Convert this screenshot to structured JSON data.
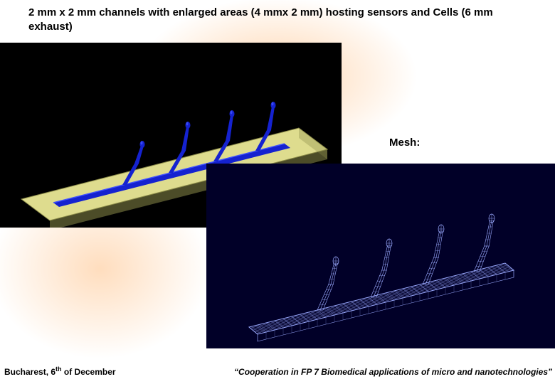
{
  "title": "2 mm x 2 mm channels with enlarged areas (4 mmx 2 mm) hosting sensors and Cells  (6 mm exhaust)",
  "mesh_label": "Mesh:",
  "footer_left_pre": "Bucharest, 6",
  "footer_left_sup": "th",
  "footer_left_post": " of December",
  "footer_right": "“Cooperation in FP 7 Biomedical applications of micro and nanotechnologies”",
  "fig1": {
    "type": "diagram",
    "background_color": "#000000",
    "slab_fill": "#dedc8e",
    "slab_edge": "#8a8a48",
    "channel_color": "#1522d0",
    "channel_highlight": "#3f52ff",
    "branch_count": 4,
    "slab_points": "30,220 420,120 460,150 70,250",
    "channel_main": "75,225 400,142 408,148 83,231",
    "branches": [
      {
        "base": "175,200",
        "mid": "192,170",
        "top": "200,145"
      },
      {
        "base": "240,183",
        "mid": "258,152",
        "top": "264,118"
      },
      {
        "base": "303,167",
        "mid": "320,138",
        "top": "326,102"
      },
      {
        "base": "362,152",
        "mid": "378,123",
        "top": "384,90"
      }
    ]
  },
  "fig2": {
    "type": "mesh-diagram",
    "background_color": "#010028",
    "wire_color": "#9baaff",
    "channel_main": "60,230 420,140 432,150 72,240",
    "grid_lines_long": 7,
    "grid_lines_trans": 30,
    "branches": [
      {
        "base": "160,206",
        "mid": "175,170",
        "top": "182,140"
      },
      {
        "base": "235,188",
        "mid": "250,150",
        "top": "257,115"
      },
      {
        "base": "308,170",
        "mid": "323,132",
        "top": "330,95"
      },
      {
        "base": "380,152",
        "mid": "394,116",
        "top": "401,80"
      }
    ]
  }
}
